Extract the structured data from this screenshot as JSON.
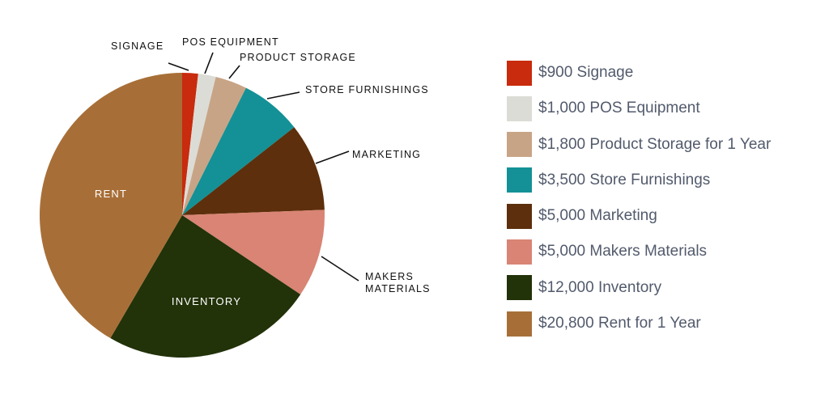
{
  "chart_data": {
    "type": "pie",
    "slices": [
      {
        "label": "SIGNAGE",
        "value": 900,
        "color": "#c82b0d"
      },
      {
        "label": "POS EQUIPMENT",
        "value": 1000,
        "color": "#dcdcd6"
      },
      {
        "label": "PRODUCT STORAGE",
        "value": 1800,
        "color": "#c8a486"
      },
      {
        "label": "STORE FURNISHINGS",
        "value": 3500,
        "color": "#139196"
      },
      {
        "label": "MARKETING",
        "value": 5000,
        "color": "#5d2f0c"
      },
      {
        "label": "MAKERS MATERIALS",
        "value": 5000,
        "color": "#d98474"
      },
      {
        "label": "INVENTORY",
        "value": 12000,
        "color": "#223209"
      },
      {
        "label": "RENT",
        "value": 20800,
        "color": "#a76f37"
      }
    ]
  },
  "legend": {
    "items": [
      {
        "text": "$900 Signage",
        "color": "#c82b0d"
      },
      {
        "text": "$1,000 POS Equipment",
        "color": "#dcdcd6"
      },
      {
        "text": "$1,800 Product Storage for 1 Year",
        "color": "#c8a486"
      },
      {
        "text": "$3,500 Store Furnishings",
        "color": "#139196"
      },
      {
        "text": "$5,000 Marketing",
        "color": "#5d2f0c"
      },
      {
        "text": "$5,000 Makers Materials",
        "color": "#d98474"
      },
      {
        "text": "$12,000 Inventory",
        "color": "#223209"
      },
      {
        "text": "$20,800 Rent for 1 Year",
        "color": "#a76f37"
      }
    ]
  }
}
